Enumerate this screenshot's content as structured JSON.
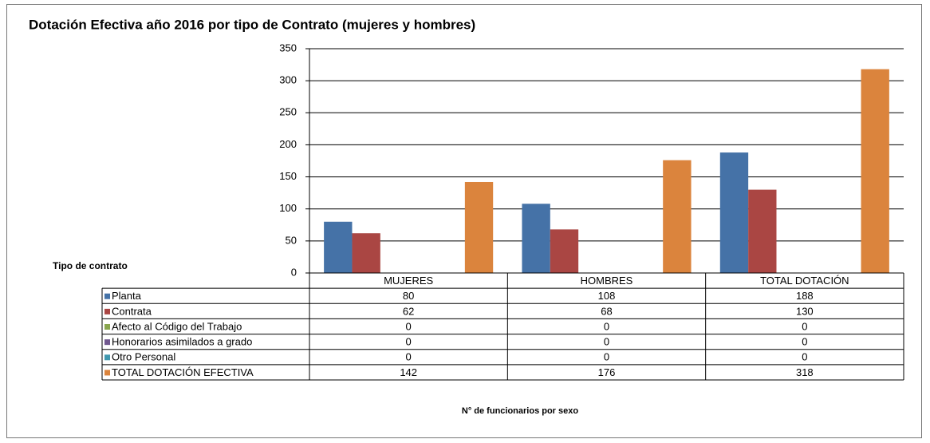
{
  "chart_data": {
    "type": "bar",
    "title": "Dotación Efectiva año 2016 por tipo de Contrato (mujeres y hombres)",
    "table_label": "Tipo de contrato",
    "x_label": "N° de funcionarios por sexo",
    "categories": [
      "MUJERES",
      "HOMBRES",
      "TOTAL DOTACIÓN"
    ],
    "series": [
      {
        "name": "Planta",
        "color": "#4572a7",
        "values": [
          80,
          108,
          188
        ]
      },
      {
        "name": "Contrata",
        "color": "#aa4643",
        "values": [
          62,
          68,
          130
        ]
      },
      {
        "name": "Afecto al Código del Trabajo",
        "color": "#89a54e",
        "values": [
          0,
          0,
          0
        ]
      },
      {
        "name": "Honorarios asimilados a grado",
        "color": "#71588f",
        "values": [
          0,
          0,
          0
        ]
      },
      {
        "name": "Otro Personal",
        "color": "#4198af",
        "values": [
          0,
          0,
          0
        ]
      },
      {
        "name": "TOTAL DOTACIÓN EFECTIVA",
        "color": "#db843d",
        "values": [
          142,
          176,
          318
        ]
      }
    ],
    "ylim": [
      0,
      350
    ],
    "yticks": [
      0,
      50,
      100,
      150,
      200,
      250,
      300,
      350
    ],
    "grid": true
  }
}
